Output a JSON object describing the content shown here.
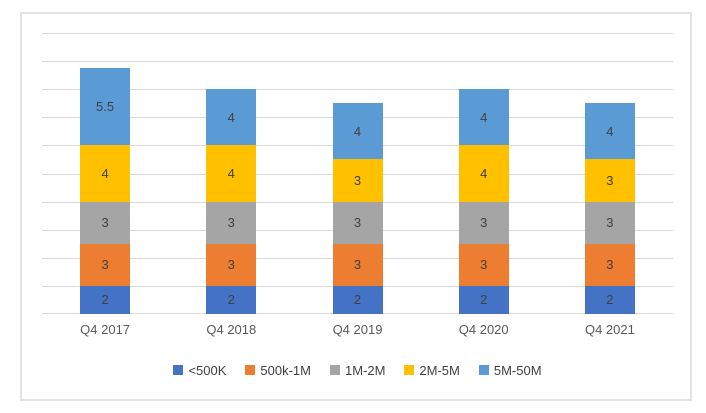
{
  "chart_data": {
    "type": "bar",
    "stacked": true,
    "title": "",
    "xlabel": "",
    "ylabel": "",
    "categories": [
      "Q4 2017",
      "Q4 2018",
      "Q4 2019",
      "Q4 2020",
      "Q4 2021"
    ],
    "series": [
      {
        "name": "<500K",
        "color": "#4472c4",
        "values": [
          2,
          2,
          2,
          2,
          2
        ]
      },
      {
        "name": "500k-1M",
        "color": "#ed7d31",
        "values": [
          3,
          3,
          3,
          3,
          3
        ]
      },
      {
        "name": "1M-2M",
        "color": "#a5a5a5",
        "values": [
          3,
          3,
          3,
          3,
          3
        ]
      },
      {
        "name": "2M-5M",
        "color": "#ffc000",
        "values": [
          4,
          4,
          3,
          4,
          3
        ]
      },
      {
        "name": "5M-50M",
        "color": "#5b9bd5",
        "values": [
          5.5,
          4,
          4,
          4,
          4
        ]
      }
    ],
    "totals": [
      17.5,
      16,
      15,
      16,
      15
    ],
    "ylim": [
      0,
      20
    ],
    "grid_step": 2,
    "grid": true,
    "data_labels": true,
    "legend_position": "bottom",
    "y_tick_labels_visible": false
  },
  "colors": {
    "gridline": "#d9d9d9",
    "frame_border": "#e3e3e3",
    "data_label_text": "#404040",
    "axis_label_text": "#595959"
  }
}
